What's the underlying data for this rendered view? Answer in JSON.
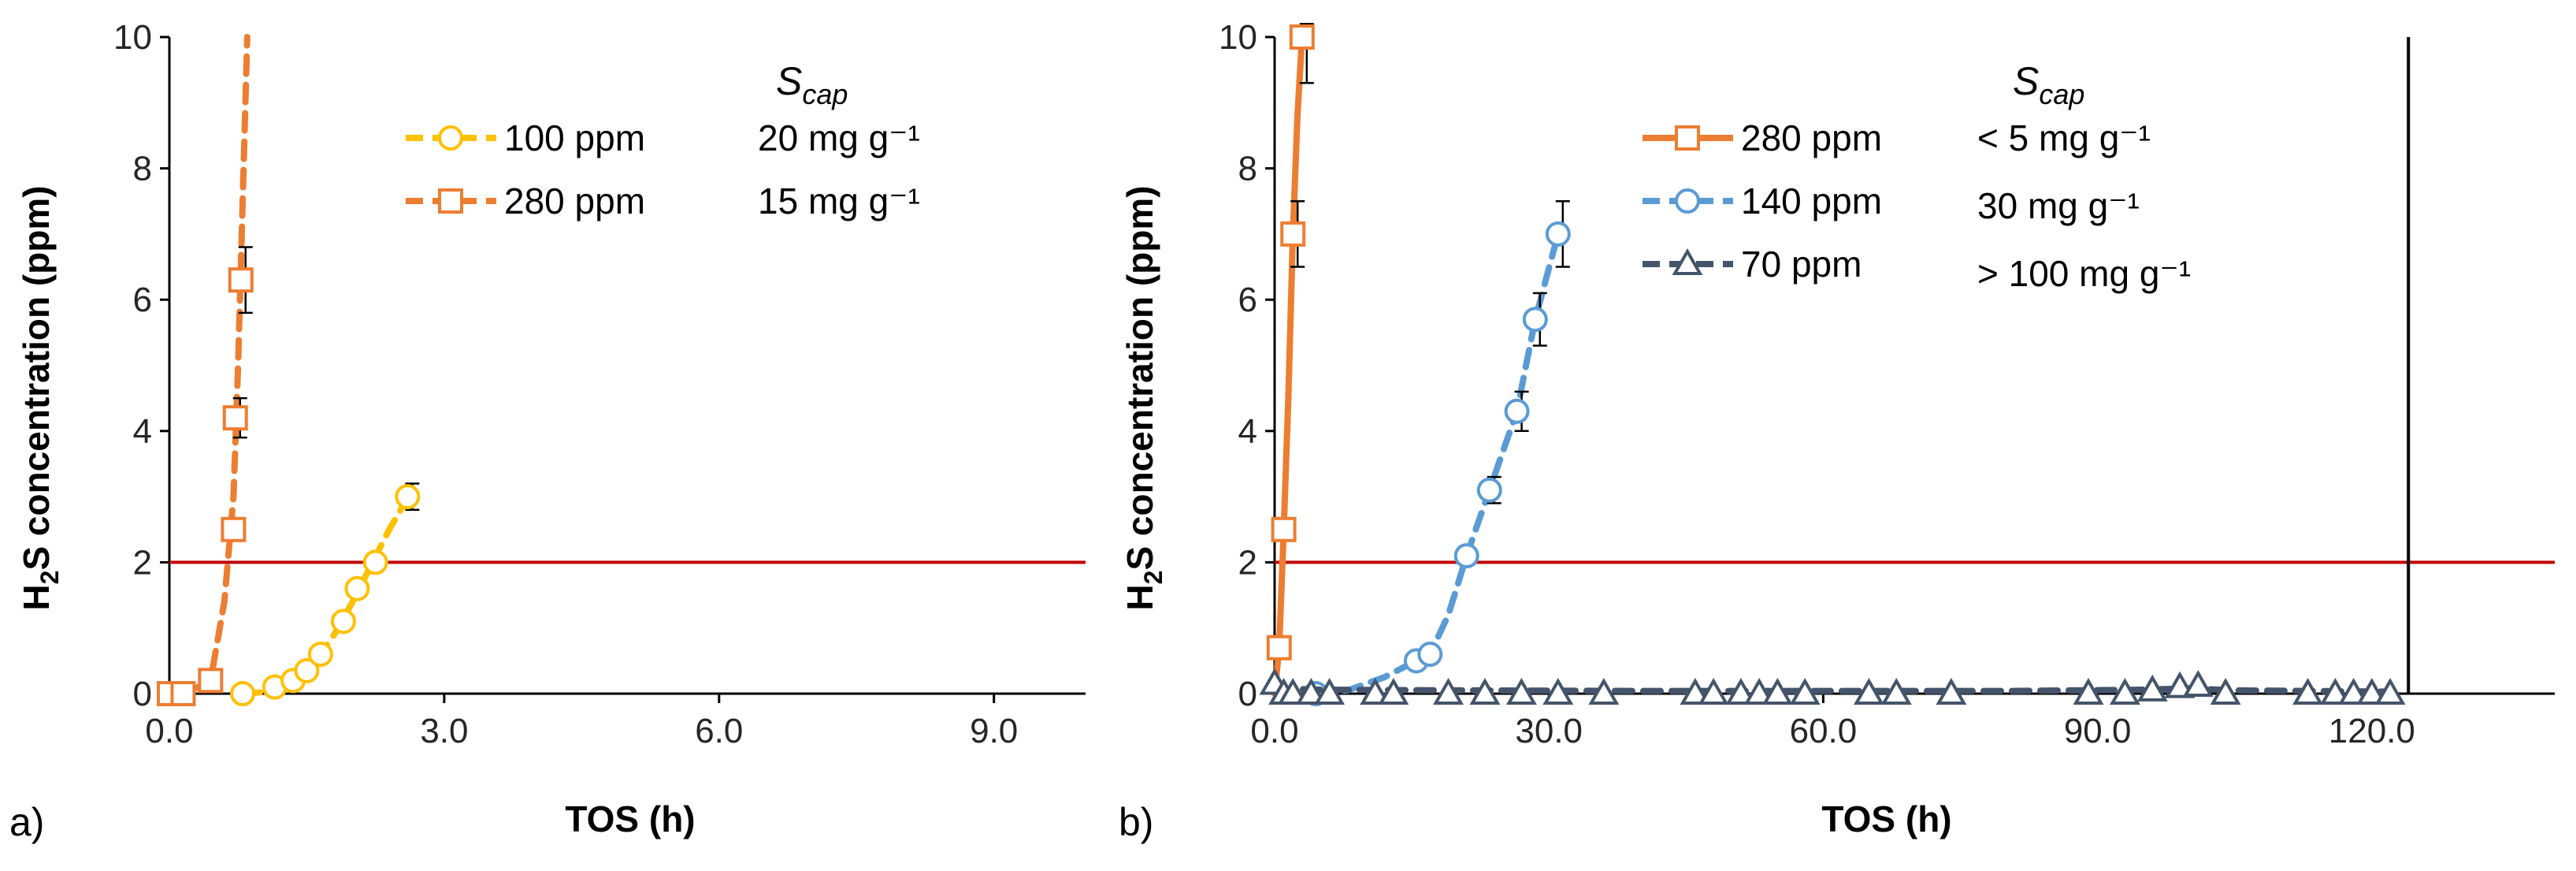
{
  "chart_data": [
    {
      "panel_label": "a)",
      "type": "line",
      "xlabel": "TOS (h)",
      "ylabel_main": "H",
      "ylabel_sub": "2",
      "ylabel_rest": "S concentration  (ppm)",
      "xlim": [
        0,
        10
      ],
      "ylim": [
        0,
        10
      ],
      "xticks": [
        "0.0",
        "3.0",
        "6.0",
        "9.0"
      ],
      "xtick_values": [
        0,
        3,
        6,
        9
      ],
      "yticks": [
        "0",
        "2",
        "4",
        "6",
        "8",
        "10"
      ],
      "ytick_values": [
        0,
        2,
        4,
        6,
        8,
        10
      ],
      "threshold": 2,
      "scap_main": "S",
      "scap_sub": "cap",
      "series": [
        {
          "name": "100 ppm",
          "scap": "20 mg g⁻¹",
          "color": "#FFC000",
          "marker": "circle",
          "x": [
            0.8,
            1.15,
            1.35,
            1.5,
            1.65,
            1.9,
            2.05,
            2.25,
            2.6
          ],
          "y": [
            0,
            0.1,
            0.2,
            0.35,
            0.6,
            1.1,
            1.6,
            2.0,
            3.0
          ],
          "err": [
            0,
            0,
            0,
            0,
            0,
            0,
            0,
            0,
            0.2
          ],
          "curve_x": [
            0.8,
            1.0,
            1.2,
            1.4,
            1.6,
            1.8,
            2.0,
            2.2,
            2.4,
            2.65
          ],
          "curve_y": [
            0,
            0.02,
            0.1,
            0.25,
            0.5,
            0.9,
            1.4,
            1.95,
            2.5,
            3.1
          ]
        },
        {
          "name": "280 ppm",
          "scap": "15 mg g⁻¹",
          "color": "#ED7D31",
          "marker": "square",
          "x": [
            0.0,
            0.15,
            0.45,
            0.7,
            0.72,
            0.78
          ],
          "y": [
            0,
            0,
            0.2,
            2.5,
            4.2,
            6.3
          ],
          "err": [
            0,
            0,
            0,
            0,
            0.3,
            0.5
          ],
          "curve_x": [
            0.0,
            0.2,
            0.45,
            0.6,
            0.7,
            0.75,
            0.8,
            0.85
          ],
          "curve_y": [
            0,
            0.02,
            0.2,
            1.4,
            3.0,
            5.0,
            7.5,
            10.0
          ]
        }
      ]
    },
    {
      "panel_label": "b)",
      "type": "line",
      "xlabel": "TOS (h)",
      "ylabel_main": "H",
      "ylabel_sub": "2",
      "ylabel_rest": "S concentration  (ppm)",
      "xlim": [
        0,
        140
      ],
      "ylim": [
        0,
        10
      ],
      "xticks": [
        "0.0",
        "30.0",
        "60.0",
        "90.0",
        "120.0"
      ],
      "xtick_values": [
        0,
        30,
        60,
        90,
        120
      ],
      "yticks": [
        "0",
        "2",
        "4",
        "6",
        "8",
        "10"
      ],
      "ytick_values": [
        0,
        2,
        4,
        6,
        8,
        10
      ],
      "threshold": 2,
      "vline_x": 124,
      "scap_main": "S",
      "scap_sub": "cap",
      "series": [
        {
          "name": "280 ppm",
          "scap": "< 5 mg g⁻¹",
          "color": "#ED7D31",
          "marker": "square",
          "solid": true,
          "x": [
            0.5,
            1.0,
            2.0,
            3.0
          ],
          "y": [
            0.7,
            2.5,
            7.0,
            10.0
          ],
          "err": [
            0,
            0,
            0.5,
            0.7
          ],
          "curve_x": [
            0.0,
            0.5,
            1.0,
            1.5,
            2.0,
            2.5,
            3.0
          ],
          "curve_y": [
            0,
            0.7,
            2.5,
            4.5,
            7.0,
            8.8,
            10.0
          ]
        },
        {
          "name": "140 ppm",
          "scap": "30 mg g⁻¹",
          "color": "#5B9BD5",
          "marker": "circle",
          "x": [
            4.5,
            15.5,
            17.0,
            21.0,
            23.5,
            26.5,
            28.5,
            31.0
          ],
          "y": [
            0,
            0.5,
            0.6,
            2.1,
            3.1,
            4.3,
            5.7,
            7.0
          ],
          "err": [
            0,
            0,
            0,
            0,
            0.2,
            0.3,
            0.4,
            0.5
          ],
          "curve_x": [
            4.5,
            8,
            12,
            15.5,
            17,
            19,
            21,
            23.5,
            26.5,
            28.5,
            31
          ],
          "curve_y": [
            0,
            0.05,
            0.25,
            0.5,
            0.6,
            1.2,
            2.1,
            3.1,
            4.3,
            5.7,
            7.0
          ]
        },
        {
          "name": "70 ppm",
          "scap": "> 100 mg g⁻¹",
          "color": "#44546A",
          "marker": "triangle",
          "x": [
            0,
            1,
            2,
            4,
            6,
            11,
            13,
            19,
            23,
            27,
            31,
            36,
            46,
            48,
            51,
            53,
            55,
            58,
            65,
            68,
            74,
            89,
            93,
            96,
            99,
            101,
            104,
            113,
            116,
            118,
            120,
            122
          ],
          "y": [
            0.15,
            0,
            0,
            0,
            0,
            0,
            0,
            0,
            0,
            0,
            0,
            0,
            0,
            0,
            0,
            0,
            0,
            0,
            0,
            0,
            0,
            0,
            0,
            0.05,
            0.1,
            0.12,
            0,
            0,
            0,
            0,
            0,
            0
          ],
          "err": [],
          "curve_x": [
            0,
            5,
            20,
            40,
            60,
            80,
            95,
            100,
            105,
            122
          ],
          "curve_y": [
            0.08,
            0.06,
            0.05,
            0.04,
            0.04,
            0.04,
            0.06,
            0.08,
            0.05,
            0.03
          ]
        }
      ]
    }
  ]
}
